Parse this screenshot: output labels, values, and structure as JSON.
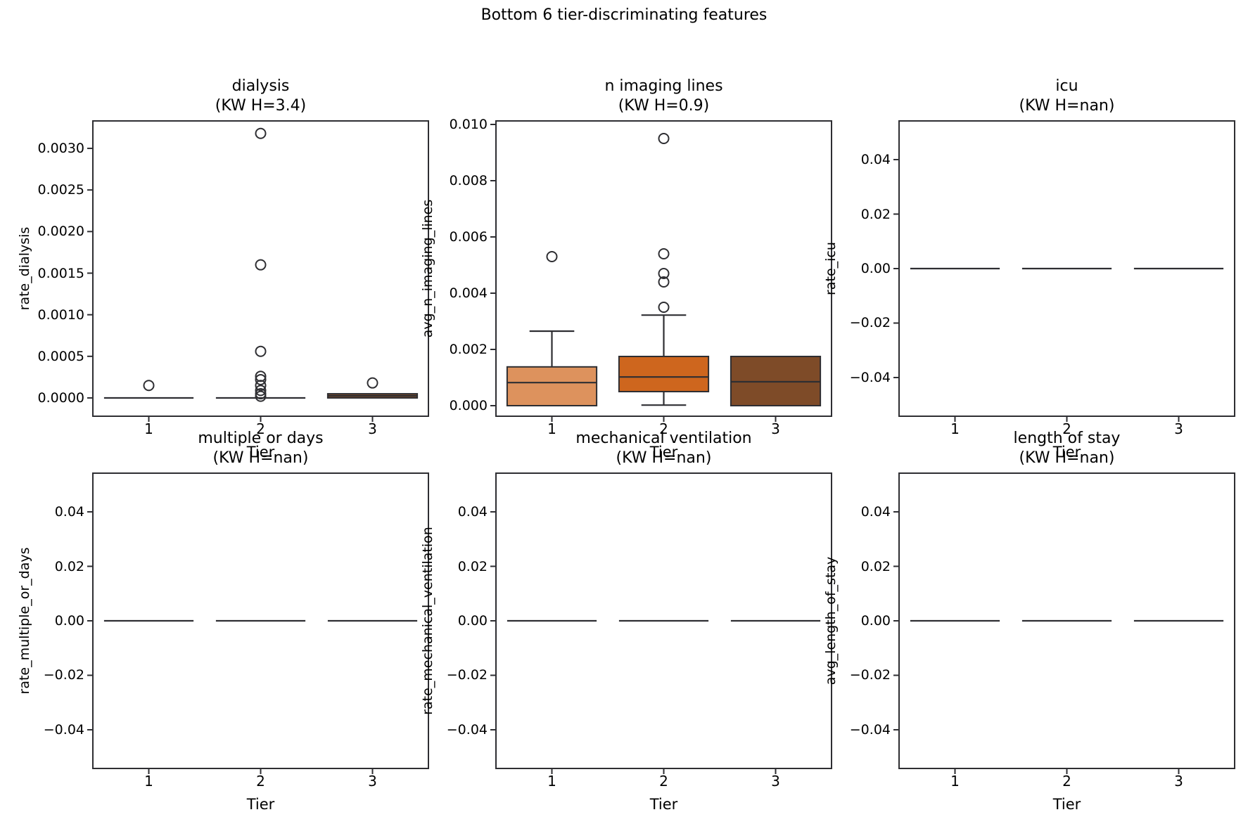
{
  "suptitle": "Bottom 6 tier-discriminating features",
  "line_color": "#2e2e32",
  "chart_data": {
    "type": "box",
    "title": "Bottom 6 tier-discriminating features",
    "grid": "off",
    "legend": "none",
    "plots": [
      {
        "title": "dialysis",
        "kw": "(KW H=3.4)",
        "ylabel": "rate_dialysis",
        "xlabel": "Tier",
        "categories": [
          "1",
          "2",
          "3"
        ],
        "ylim": [
          -0.00022,
          0.00333
        ],
        "yticks": [
          {
            "v": 0.0,
            "label": "0.0000"
          },
          {
            "v": 0.0005,
            "label": "0.0005"
          },
          {
            "v": 0.001,
            "label": "0.0010"
          },
          {
            "v": 0.0015,
            "label": "0.0015"
          },
          {
            "v": 0.002,
            "label": "0.0020"
          },
          {
            "v": 0.0025,
            "label": "0.0025"
          },
          {
            "v": 0.003,
            "label": "0.0030"
          }
        ],
        "groups": [
          {
            "tier": "1",
            "type": "flat",
            "value": 0.0,
            "outliers": [
              0.00015
            ]
          },
          {
            "tier": "2",
            "type": "flat",
            "value": 0.0,
            "outliers": [
              0.00318,
              0.0016,
              0.00056,
              0.00026,
              0.00022,
              0.00015,
              9e-05,
              5e-05,
              2e-05
            ]
          },
          {
            "tier": "3",
            "type": "box",
            "q1": 0.0,
            "median": 2.5e-05,
            "q3": 5e-05,
            "whisker_lo": 0.0,
            "whisker_hi": 5e-05,
            "color": "#7E4B28",
            "outliers": [
              0.00018
            ]
          }
        ]
      },
      {
        "title": "n imaging lines",
        "kw": "(KW H=0.9)",
        "ylabel": "avg_n_imaging_lines",
        "xlabel": "Tier",
        "categories": [
          "1",
          "2",
          "3"
        ],
        "ylim": [
          -0.000375,
          0.010125
        ],
        "yticks": [
          {
            "v": 0.0,
            "label": "0.000"
          },
          {
            "v": 0.002,
            "label": "0.002"
          },
          {
            "v": 0.004,
            "label": "0.004"
          },
          {
            "v": 0.006,
            "label": "0.006"
          },
          {
            "v": 0.008,
            "label": "0.008"
          },
          {
            "v": 0.01,
            "label": "0.010"
          }
        ],
        "groups": [
          {
            "tier": "1",
            "type": "box",
            "q1": 0.0,
            "median": 0.00082,
            "q3": 0.00138,
            "whisker_lo": 0.0,
            "whisker_hi": 0.00265,
            "color": "#DD925D",
            "outliers": [
              0.0053
            ]
          },
          {
            "tier": "2",
            "type": "box",
            "q1": 0.0005,
            "median": 0.00102,
            "q3": 0.00175,
            "whisker_lo": 2e-05,
            "whisker_hi": 0.00322,
            "color": "#CE661E",
            "outliers": [
              0.0095,
              0.0054,
              0.0047,
              0.0044,
              0.0035
            ]
          },
          {
            "tier": "3",
            "type": "box",
            "q1": 0.0,
            "median": 0.00085,
            "q3": 0.00175,
            "whisker_lo": 0.0,
            "whisker_hi": 0.00175,
            "color": "#7E4B28",
            "outliers": []
          }
        ]
      },
      {
        "title": "icu",
        "kw": "(KW H=nan)",
        "ylabel": "rate_icu",
        "xlabel": "Tier",
        "categories": [
          "1",
          "2",
          "3"
        ],
        "ylim": [
          -0.0542,
          0.0542
        ],
        "yticks": [
          {
            "v": -0.04,
            "label": "−0.04"
          },
          {
            "v": -0.02,
            "label": "−0.02"
          },
          {
            "v": 0.0,
            "label": "0.00"
          },
          {
            "v": 0.02,
            "label": "0.02"
          },
          {
            "v": 0.04,
            "label": "0.04"
          }
        ],
        "groups": [
          {
            "tier": "1",
            "type": "flat",
            "value": 0.0,
            "outliers": []
          },
          {
            "tier": "2",
            "type": "flat",
            "value": 0.0,
            "outliers": []
          },
          {
            "tier": "3",
            "type": "flat",
            "value": 0.0,
            "outliers": []
          }
        ]
      },
      {
        "title": "multiple or days",
        "kw": "(KW H=nan)",
        "ylabel": "rate_multiple_or_days",
        "xlabel": "Tier",
        "categories": [
          "1",
          "2",
          "3"
        ],
        "ylim": [
          -0.0542,
          0.0542
        ],
        "yticks": [
          {
            "v": -0.04,
            "label": "−0.04"
          },
          {
            "v": -0.02,
            "label": "−0.02"
          },
          {
            "v": 0.0,
            "label": "0.00"
          },
          {
            "v": 0.02,
            "label": "0.02"
          },
          {
            "v": 0.04,
            "label": "0.04"
          }
        ],
        "groups": [
          {
            "tier": "1",
            "type": "flat",
            "value": 0.0,
            "outliers": []
          },
          {
            "tier": "2",
            "type": "flat",
            "value": 0.0,
            "outliers": []
          },
          {
            "tier": "3",
            "type": "flat",
            "value": 0.0,
            "outliers": []
          }
        ]
      },
      {
        "title": "mechanical ventilation",
        "kw": "(KW H=nan)",
        "ylabel": "rate_mechanical_ventilation",
        "xlabel": "Tier",
        "categories": [
          "1",
          "2",
          "3"
        ],
        "ylim": [
          -0.0542,
          0.0542
        ],
        "yticks": [
          {
            "v": -0.04,
            "label": "−0.04"
          },
          {
            "v": -0.02,
            "label": "−0.02"
          },
          {
            "v": 0.0,
            "label": "0.00"
          },
          {
            "v": 0.02,
            "label": "0.02"
          },
          {
            "v": 0.04,
            "label": "0.04"
          }
        ],
        "groups": [
          {
            "tier": "1",
            "type": "flat",
            "value": 0.0,
            "outliers": []
          },
          {
            "tier": "2",
            "type": "flat",
            "value": 0.0,
            "outliers": []
          },
          {
            "tier": "3",
            "type": "flat",
            "value": 0.0,
            "outliers": []
          }
        ]
      },
      {
        "title": "length of stay",
        "kw": "(KW H=nan)",
        "ylabel": "avg_length_of_stay",
        "xlabel": "Tier",
        "categories": [
          "1",
          "2",
          "3"
        ],
        "ylim": [
          -0.0542,
          0.0542
        ],
        "yticks": [
          {
            "v": -0.04,
            "label": "−0.04"
          },
          {
            "v": -0.02,
            "label": "−0.02"
          },
          {
            "v": 0.0,
            "label": "0.00"
          },
          {
            "v": 0.02,
            "label": "0.02"
          },
          {
            "v": 0.04,
            "label": "0.04"
          }
        ],
        "groups": [
          {
            "tier": "1",
            "type": "flat",
            "value": 0.0,
            "outliers": []
          },
          {
            "tier": "2",
            "type": "flat",
            "value": 0.0,
            "outliers": []
          },
          {
            "tier": "3",
            "type": "flat",
            "value": 0.0,
            "outliers": []
          }
        ]
      }
    ]
  }
}
